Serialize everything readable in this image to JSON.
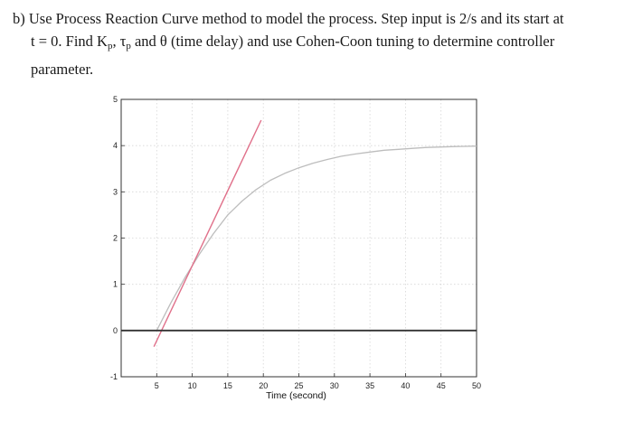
{
  "question": {
    "line1": "b) Use Process Reaction Curve method to model the process. Step input is 2/s and its start at",
    "line2_pre": "t = 0. Find K",
    "line2_kp_sub": "p",
    "line2_mid1": ", τ",
    "line2_tau_sub": "p",
    "line2_post": " and θ (time delay) and use Cohen-Coon tuning to determine controller",
    "line3": "parameter."
  },
  "chart_data": {
    "type": "line",
    "xlabel": "Time (second)",
    "ylabel": "",
    "xlim": [
      0,
      50
    ],
    "ylim": [
      -1,
      5
    ],
    "xticks": [
      5,
      10,
      15,
      20,
      25,
      30,
      35,
      40,
      45,
      50
    ],
    "yticks": [
      -1,
      0,
      1,
      2,
      3,
      4,
      5
    ],
    "grid": true,
    "series": [
      {
        "key": "response",
        "color": "#bdbdbd",
        "x": [
          5,
          7,
          9,
          11,
          13,
          15,
          17,
          19,
          21,
          23,
          25,
          27,
          29,
          31,
          33,
          35,
          37,
          39,
          41,
          43,
          45,
          47,
          50
        ],
        "y": [
          0,
          0.6,
          1.15,
          1.65,
          2.1,
          2.5,
          2.8,
          3.05,
          3.25,
          3.4,
          3.52,
          3.62,
          3.7,
          3.77,
          3.82,
          3.86,
          3.9,
          3.92,
          3.94,
          3.96,
          3.97,
          3.98,
          3.99
        ]
      },
      {
        "key": "tangent",
        "color": "#e0708a",
        "x": [
          4.6,
          19.7
        ],
        "y": [
          -0.35,
          4.55
        ]
      },
      {
        "key": "baseline",
        "color": "#333333",
        "x": [
          0,
          50
        ],
        "y": [
          0,
          0
        ]
      }
    ]
  }
}
